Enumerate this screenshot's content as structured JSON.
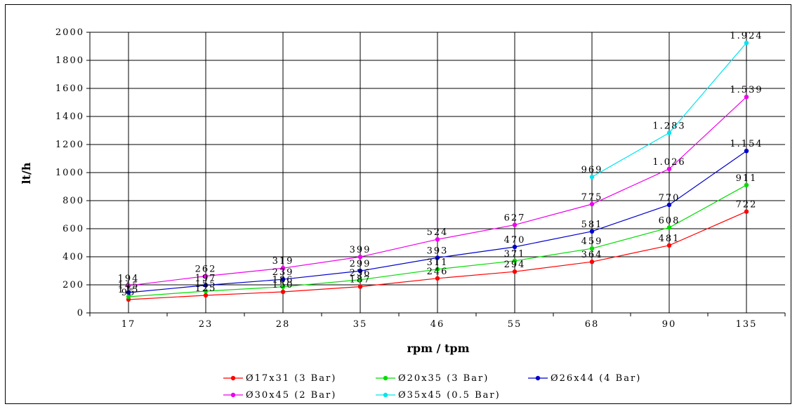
{
  "chart_data": {
    "type": "line",
    "title": "",
    "xlabel": "rpm / tpm",
    "ylabel": "lt/h",
    "categories": [
      "17",
      "23",
      "28",
      "35",
      "46",
      "55",
      "68",
      "90",
      "135"
    ],
    "ylim": [
      0,
      2000
    ],
    "ytick_step": 200,
    "yticks": [
      "0",
      "200",
      "400",
      "600",
      "800",
      "1000",
      "1200",
      "1400",
      "1600",
      "1800",
      "2000"
    ],
    "grid": true,
    "legend_position": "bottom",
    "series": [
      {
        "name": "Ø17x31 (3 Bar)",
        "color": "#ff0000",
        "values": [
          95,
          125,
          150,
          187,
          246,
          294,
          364,
          481,
          722
        ],
        "labels": [
          "95",
          "125",
          "150",
          "187",
          "246",
          "294",
          "364",
          "481",
          "722"
        ]
      },
      {
        "name": "Ø20x35 (3 Bar)",
        "color": "#00dd00",
        "values": [
          115,
          155,
          186,
          236,
          311,
          371,
          459,
          608,
          911
        ],
        "labels": [
          "115",
          "155",
          "186",
          "236",
          "311",
          "371",
          "459",
          "608",
          "911"
        ]
      },
      {
        "name": "Ø26x44 (4 Bar)",
        "color": "#0000cc",
        "values": [
          145,
          197,
          239,
          299,
          393,
          470,
          581,
          770,
          1154
        ],
        "labels": [
          "145",
          "197",
          "239",
          "299",
          "393",
          "470",
          "581",
          "770",
          "1.154"
        ]
      },
      {
        "name": "Ø30x45 (2 Bar)",
        "color": "#ee00ee",
        "values": [
          194,
          262,
          319,
          399,
          524,
          627,
          775,
          1026,
          1539
        ],
        "labels": [
          "194",
          "262",
          "319",
          "399",
          "524",
          "627",
          "775",
          "1.026",
          "1.539"
        ]
      },
      {
        "name": "Ø35x45 (0.5 Bar)",
        "color": "#00e5ee",
        "values": [
          null,
          null,
          null,
          null,
          null,
          null,
          969,
          1283,
          1924
        ],
        "labels": [
          "",
          "",
          "",
          "",
          "",
          "",
          "969",
          "1.283",
          "1.924"
        ]
      }
    ]
  }
}
